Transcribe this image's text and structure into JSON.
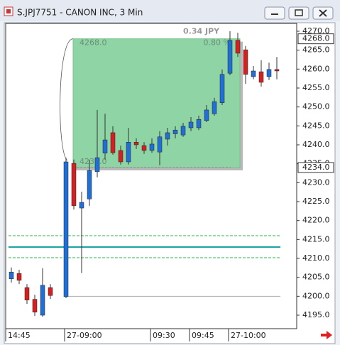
{
  "chart_data": {
    "type": "candlestick",
    "title": "S.JPJ7751 - CANON INC, 3 Min",
    "categories": [
      "14:45",
      null,
      null,
      null,
      null,
      null,
      null,
      "27-09:00",
      null,
      null,
      null,
      null,
      null,
      null,
      null,
      null,
      null,
      null,
      "09:30",
      null,
      null,
      null,
      null,
      "09:45",
      null,
      null,
      null,
      null,
      "27-10:00",
      null,
      null,
      null,
      null,
      null,
      null
    ],
    "open": [
      4204.6,
      4206.0,
      4202.3,
      4199.2,
      4195.0,
      4202.3,
      null,
      4199.9,
      4235.1,
      4223.3,
      4225.7,
      4232.9,
      4237.8,
      4243.2,
      4238.5,
      4235.5,
      4240.7,
      4239.8,
      4238.5,
      4238.1,
      4241.5,
      4242.9,
      4242.6,
      4244.5,
      4244.5,
      4246.4,
      4248.2,
      4251.1,
      4258.9,
      4267.6,
      4265.1,
      4258.0,
      4259.3,
      4258.0,
      4259.9
    ],
    "high": [
      4207.6,
      4207.0,
      4203.2,
      4200.4,
      4207.4,
      4203.2,
      null,
      4236.6,
      4236.1,
      4227.6,
      4236.1,
      4249.2,
      4248.2,
      4244.9,
      4239.8,
      4244.5,
      4241.7,
      4240.7,
      4241.7,
      4243.6,
      4244.5,
      4244.9,
      4245.8,
      4247.3,
      4247.7,
      4250.5,
      4252.4,
      4259.9,
      4270.0,
      4269.6,
      4266.1,
      4260.8,
      4262.3,
      4261.7,
      4263.2
    ],
    "low": [
      4203.6,
      4203.2,
      4198.0,
      4194.8,
      4194.6,
      4199.3,
      null,
      4199.5,
      4222.9,
      4206.1,
      4223.9,
      4231.4,
      4236.1,
      4237.4,
      4234.8,
      4234.8,
      4238.9,
      4237.6,
      4237.9,
      4234.6,
      4239.8,
      4241.7,
      4242.1,
      4243.6,
      4243.9,
      4246.0,
      4247.7,
      4250.5,
      4258.4,
      4263.2,
      4256.1,
      4257.3,
      4255.4,
      4257.1,
      4257.3
    ],
    "close": [
      4206.4,
      4204.2,
      4199.0,
      4195.8,
      4202.9,
      4200.2,
      null,
      4235.5,
      4223.9,
      4224.8,
      4233.2,
      4236.6,
      4241.3,
      4237.9,
      4235.5,
      4240.7,
      4240.0,
      4238.5,
      4240.2,
      4242.1,
      4243.2,
      4243.9,
      4244.9,
      4246.0,
      4246.7,
      4249.2,
      4251.4,
      4258.6,
      4267.6,
      4264.2,
      4258.6,
      4259.5,
      4256.5,
      4259.9,
      4259.5
    ],
    "up_color": "#1f6fd6",
    "down_color": "#d42020",
    "ylim": [
      4191.44,
      4272.06
    ],
    "yticks": [
      {
        "value": 4195,
        "label": "4195.0"
      },
      {
        "value": 4200,
        "label": "4200.0"
      },
      {
        "value": 4205,
        "label": "4205.0"
      },
      {
        "value": 4210,
        "label": "4210.0"
      },
      {
        "value": 4215,
        "label": "4215.0"
      },
      {
        "value": 4220,
        "label": "4220.0"
      },
      {
        "value": 4225,
        "label": "4225.0"
      },
      {
        "value": 4230,
        "label": "4230.0"
      },
      {
        "value": 4235,
        "label": "4235.0"
      },
      {
        "value": 4240,
        "label": "4240.0"
      },
      {
        "value": 4245,
        "label": "4245.0"
      },
      {
        "value": 4250,
        "label": "4250.0"
      },
      {
        "value": 4255,
        "label": "4255.0"
      },
      {
        "value": 4260,
        "label": "4260.0"
      },
      {
        "value": 4265,
        "label": "4265.0"
      },
      {
        "value": 4270,
        "label": "4270.0"
      }
    ],
    "price_markers": [
      {
        "value": 4268,
        "label": "4268.0"
      },
      {
        "value": 4234,
        "label": "4234.0"
      }
    ],
    "measure_box": {
      "color": "#8fd4a4",
      "change_label": "0.34 JPY",
      "change_pct_label": "0.80 %"
    },
    "lines": [
      {
        "value": 4216,
        "color": "#2eb34a",
        "style": "dashed"
      },
      {
        "value": 4213,
        "color": "#1aa3a0",
        "style": "solid"
      },
      {
        "value": 4210.2,
        "color": "#2eb34a",
        "style": "dashed"
      },
      {
        "value": 4200,
        "color": "#aaaaaa",
        "style": "solid"
      }
    ]
  }
}
